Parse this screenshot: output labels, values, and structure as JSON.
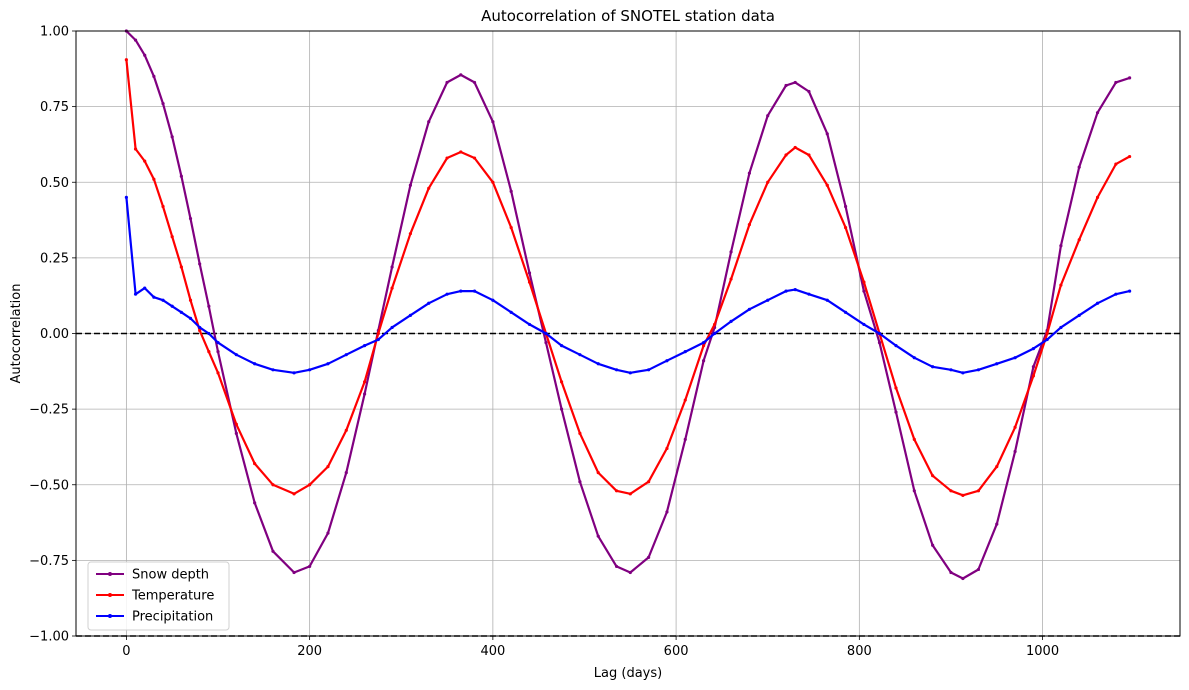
{
  "chart_data": {
    "type": "line",
    "title": "Autocorrelation of SNOTEL station data",
    "xlabel": "Lag (days)",
    "ylabel": "Autocorrelation",
    "xlim": [
      -55,
      1150
    ],
    "ylim": [
      -1.0,
      1.0
    ],
    "xticks": [
      0,
      200,
      400,
      600,
      800,
      1000
    ],
    "yticks": [
      -1.0,
      -0.75,
      -0.5,
      -0.25,
      0.0,
      0.25,
      0.5,
      0.75,
      1.0
    ],
    "xtick_labels": [
      "0",
      "200",
      "400",
      "600",
      "800",
      "1000"
    ],
    "ytick_labels": [
      "−1.00",
      "−0.75",
      "−0.50",
      "−0.25",
      "0.00",
      "0.25",
      "0.50",
      "0.75",
      "1.00"
    ],
    "grid": true,
    "legend_position": "lower-left",
    "reference_lines": [
      {
        "y": 0.0,
        "style": "dashed",
        "color": "#000000"
      },
      {
        "y": -1.0,
        "style": "dashed",
        "color": "#000000"
      }
    ],
    "x": [
      0,
      10,
      20,
      30,
      40,
      50,
      60,
      70,
      80,
      90,
      100,
      120,
      140,
      160,
      183,
      200,
      220,
      240,
      260,
      275,
      290,
      310,
      330,
      350,
      365,
      380,
      400,
      420,
      440,
      458,
      475,
      495,
      515,
      535,
      550,
      570,
      590,
      610,
      630,
      642,
      660,
      680,
      700,
      720,
      730,
      745,
      765,
      785,
      805,
      822,
      840,
      860,
      880,
      900,
      913,
      930,
      950,
      970,
      990,
      1005,
      1020,
      1040,
      1060,
      1080,
      1095
    ],
    "series": [
      {
        "name": "Snow depth",
        "color": "#800080",
        "values": [
          1.0,
          0.97,
          0.92,
          0.85,
          0.76,
          0.65,
          0.52,
          0.38,
          0.23,
          0.09,
          -0.06,
          -0.33,
          -0.56,
          -0.72,
          -0.79,
          -0.77,
          -0.66,
          -0.46,
          -0.2,
          0.01,
          0.22,
          0.49,
          0.7,
          0.83,
          0.855,
          0.83,
          0.7,
          0.47,
          0.2,
          -0.03,
          -0.25,
          -0.49,
          -0.67,
          -0.77,
          -0.79,
          -0.74,
          -0.59,
          -0.35,
          -0.09,
          0.02,
          0.27,
          0.53,
          0.72,
          0.82,
          0.83,
          0.8,
          0.66,
          0.42,
          0.14,
          -0.03,
          -0.26,
          -0.52,
          -0.7,
          -0.79,
          -0.81,
          -0.78,
          -0.63,
          -0.39,
          -0.11,
          0.01,
          0.29,
          0.55,
          0.73,
          0.83,
          0.845
        ]
      },
      {
        "name": "Temperature",
        "color": "#ff0000",
        "values": [
          0.905,
          0.61,
          0.57,
          0.51,
          0.42,
          0.32,
          0.22,
          0.11,
          0.01,
          -0.06,
          -0.13,
          -0.3,
          -0.43,
          -0.5,
          -0.53,
          -0.5,
          -0.44,
          -0.32,
          -0.16,
          0.0,
          0.15,
          0.33,
          0.48,
          0.58,
          0.6,
          0.58,
          0.5,
          0.35,
          0.17,
          0.0,
          -0.16,
          -0.33,
          -0.46,
          -0.52,
          -0.53,
          -0.49,
          -0.38,
          -0.22,
          -0.04,
          0.03,
          0.18,
          0.36,
          0.5,
          0.59,
          0.615,
          0.59,
          0.49,
          0.35,
          0.17,
          0.0,
          -0.18,
          -0.35,
          -0.47,
          -0.52,
          -0.535,
          -0.52,
          -0.44,
          -0.31,
          -0.14,
          0.0,
          0.16,
          0.31,
          0.45,
          0.56,
          0.585
        ]
      },
      {
        "name": "Precipitation",
        "color": "#0000ff",
        "values": [
          0.45,
          0.13,
          0.15,
          0.12,
          0.11,
          0.09,
          0.07,
          0.05,
          0.02,
          0.0,
          -0.03,
          -0.07,
          -0.1,
          -0.12,
          -0.13,
          -0.12,
          -0.1,
          -0.07,
          -0.04,
          -0.02,
          0.02,
          0.06,
          0.1,
          0.13,
          0.14,
          0.14,
          0.11,
          0.07,
          0.03,
          0.0,
          -0.04,
          -0.07,
          -0.1,
          -0.12,
          -0.13,
          -0.12,
          -0.09,
          -0.06,
          -0.03,
          0.0,
          0.04,
          0.08,
          0.11,
          0.14,
          0.145,
          0.13,
          0.11,
          0.07,
          0.03,
          0.0,
          -0.04,
          -0.08,
          -0.11,
          -0.12,
          -0.13,
          -0.12,
          -0.1,
          -0.08,
          -0.05,
          -0.02,
          0.02,
          0.06,
          0.1,
          0.13,
          0.14
        ]
      }
    ]
  }
}
